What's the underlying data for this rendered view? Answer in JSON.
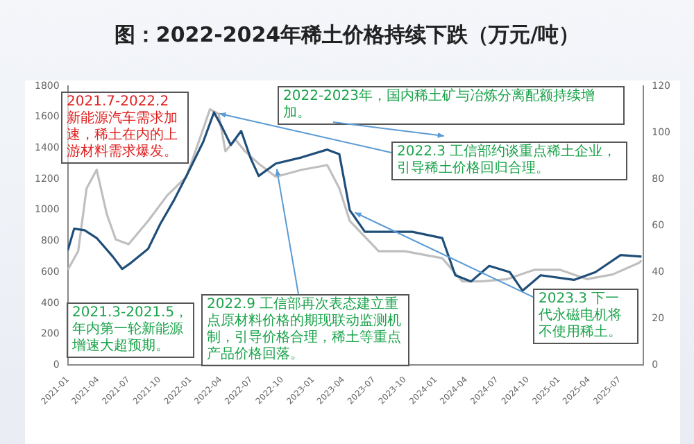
{
  "chart_data": {
    "type": "line",
    "title": "图：2022-2024年稀土价格持续下跌（万元/吨）",
    "xlim": [
      "2021-01-01",
      "2025-09-10"
    ],
    "xticks": [
      {
        "value": "2021-01-01",
        "label": "2021-01"
      },
      {
        "value": "2021-04-01",
        "label": "2021-04"
      },
      {
        "value": "2021-07-01",
        "label": "2021-07"
      },
      {
        "value": "2021-10-01",
        "label": "2021-10"
      },
      {
        "value": "2022-01-01",
        "label": "2022-01"
      },
      {
        "value": "2022-04-01",
        "label": "2022-04"
      },
      {
        "value": "2022-07-01",
        "label": "2022-07"
      },
      {
        "value": "2022-10-01",
        "label": "2022-10"
      },
      {
        "value": "2023-01-01",
        "label": "2023-01"
      },
      {
        "value": "2023-04-01",
        "label": "2023-04"
      },
      {
        "value": "2023-07-01",
        "label": "2023-07"
      },
      {
        "value": "2023-10-01",
        "label": "2023-10"
      },
      {
        "value": "2024-01-01",
        "label": "2024-01"
      },
      {
        "value": "2024-04-01",
        "label": "2024-04"
      },
      {
        "value": "2024-07-01",
        "label": "2024-07"
      },
      {
        "value": "2024-10-01",
        "label": "2024-10"
      },
      {
        "value": "2025-01-01",
        "label": "2025-01"
      },
      {
        "value": "2025-04-01",
        "label": "2025-04"
      },
      {
        "value": "2025-07-01",
        "label": "2025-07"
      }
    ],
    "ylim": [
      0,
      1800
    ],
    "yticks": [
      0,
      200,
      400,
      600,
      800,
      1000,
      1200,
      1400,
      1600,
      1800
    ],
    "y2lim": [
      0,
      120
    ],
    "y2ticks": [
      0,
      20,
      40,
      60,
      80,
      100,
      120
    ],
    "marker": "none",
    "line_style": "solid",
    "series": [
      {
        "color": "#1f4e79",
        "x": [
          "2021-01-01",
          "2021-01-20",
          "2021-02-20",
          "2021-03-28",
          "2021-05-15",
          "2021-06-12",
          "2021-07-08",
          "2021-08-28",
          "2021-10-03",
          "2021-11-12",
          "2021-12-20",
          "2022-02-08",
          "2022-03-12",
          "2022-04-04",
          "2022-05-01",
          "2022-06-01",
          "2022-06-28",
          "2022-07-23",
          "2022-09-12",
          "2022-11-28",
          "2023-02-12",
          "2023-03-20",
          "2023-04-20",
          "2023-06-04",
          "2023-08-20",
          "2023-10-23",
          "2024-01-20",
          "2024-02-28",
          "2024-04-15",
          "2024-06-08",
          "2024-08-08",
          "2024-09-15",
          "2024-11-08",
          "2025-02-15",
          "2025-04-20",
          "2025-07-04",
          "2025-09-04"
        ],
        "values": [
          740,
          880,
          870,
          820,
          700,
          620,
          660,
          750,
          910,
          1060,
          1220,
          1440,
          1630,
          1540,
          1420,
          1510,
          1340,
          1220,
          1300,
          1340,
          1390,
          1360,
          1000,
          860,
          860,
          860,
          820,
          580,
          540,
          640,
          600,
          480,
          580,
          550,
          600,
          710,
          700
        ]
      },
      {
        "color": "#bfbfbf",
        "axis": "y2",
        "x": [
          "2021-01-01",
          "2021-02-01",
          "2021-02-26",
          "2021-03-28",
          "2021-04-27",
          "2021-05-24",
          "2021-07-01",
          "2021-08-28",
          "2021-10-24",
          "2021-12-20",
          "2022-01-28",
          "2022-02-28",
          "2022-03-26",
          "2022-04-15",
          "2022-05-15",
          "2022-06-12",
          "2022-07-20",
          "2022-09-12",
          "2022-11-28",
          "2023-02-12",
          "2023-03-20",
          "2023-04-20",
          "2023-07-15",
          "2023-10-01",
          "2024-01-20",
          "2024-03-20",
          "2024-05-15",
          "2024-08-01",
          "2024-10-20",
          "2025-01-05",
          "2025-03-25",
          "2025-06-10",
          "2025-08-28",
          "2025-09-04"
        ],
        "values": [
          41,
          49,
          76,
          84,
          65,
          54,
          52,
          62,
          73,
          81,
          97,
          110,
          108,
          92,
          97,
          92,
          87,
          81,
          84,
          86,
          76,
          62,
          49,
          49,
          46,
          36,
          36,
          37,
          41,
          41,
          37,
          39,
          44,
          45
        ]
      }
    ],
    "annotations": [
      "2021.7-2022.2 新能源汽车需求加速，稀土在内的上游材料需求爆发。",
      "2022-2023年，国内稀土矿与冶炼分离配额持续增加。",
      {
        "text": "2022.3 工信部约谈重点稀土企业，引导稀土价格回归合理。",
        "x": "2022-03-12",
        "y": 1630
      },
      {
        "text": "2022.9 工信部再次表态建立重点原材料价格的期现联动监测机制，引导价格合理，稀土等重点产品价格回落。",
        "x": "2022-09-12",
        "y": 1300
      },
      {
        "text": "2023.3 下一代永磁电机将不使用稀土。",
        "x": "2023-04-20",
        "y": 1000
      },
      "2021.3-2021.5，年内第一轮新能源增速大超预期。"
    ]
  }
}
